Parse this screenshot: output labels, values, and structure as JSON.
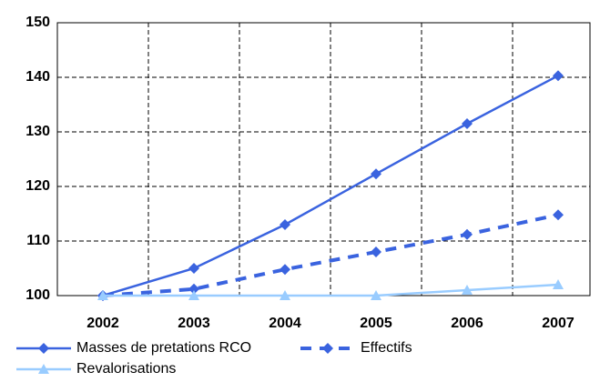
{
  "chart_data": {
    "type": "line",
    "categories": [
      "2002",
      "2003",
      "2004",
      "2005",
      "2006",
      "2007"
    ],
    "series": [
      {
        "name": "Masses de pretations RCO",
        "color": "#3a63df",
        "marker": "diamond",
        "dash": false,
        "values": [
          100,
          105,
          113,
          122.3,
          131.5,
          140.3
        ]
      },
      {
        "name": "Effectifs",
        "color": "#3a63df",
        "marker": "diamond",
        "dash": true,
        "values": [
          100,
          101.2,
          104.8,
          108,
          111.2,
          114.8
        ]
      },
      {
        "name": "Revalorisations",
        "color": "#99ccff",
        "marker": "triangle",
        "dash": false,
        "values": [
          100,
          100,
          100,
          100,
          101,
          102
        ]
      }
    ],
    "ylim": [
      100,
      150
    ],
    "yticks": [
      100,
      110,
      120,
      130,
      140,
      150
    ],
    "grid": true
  }
}
